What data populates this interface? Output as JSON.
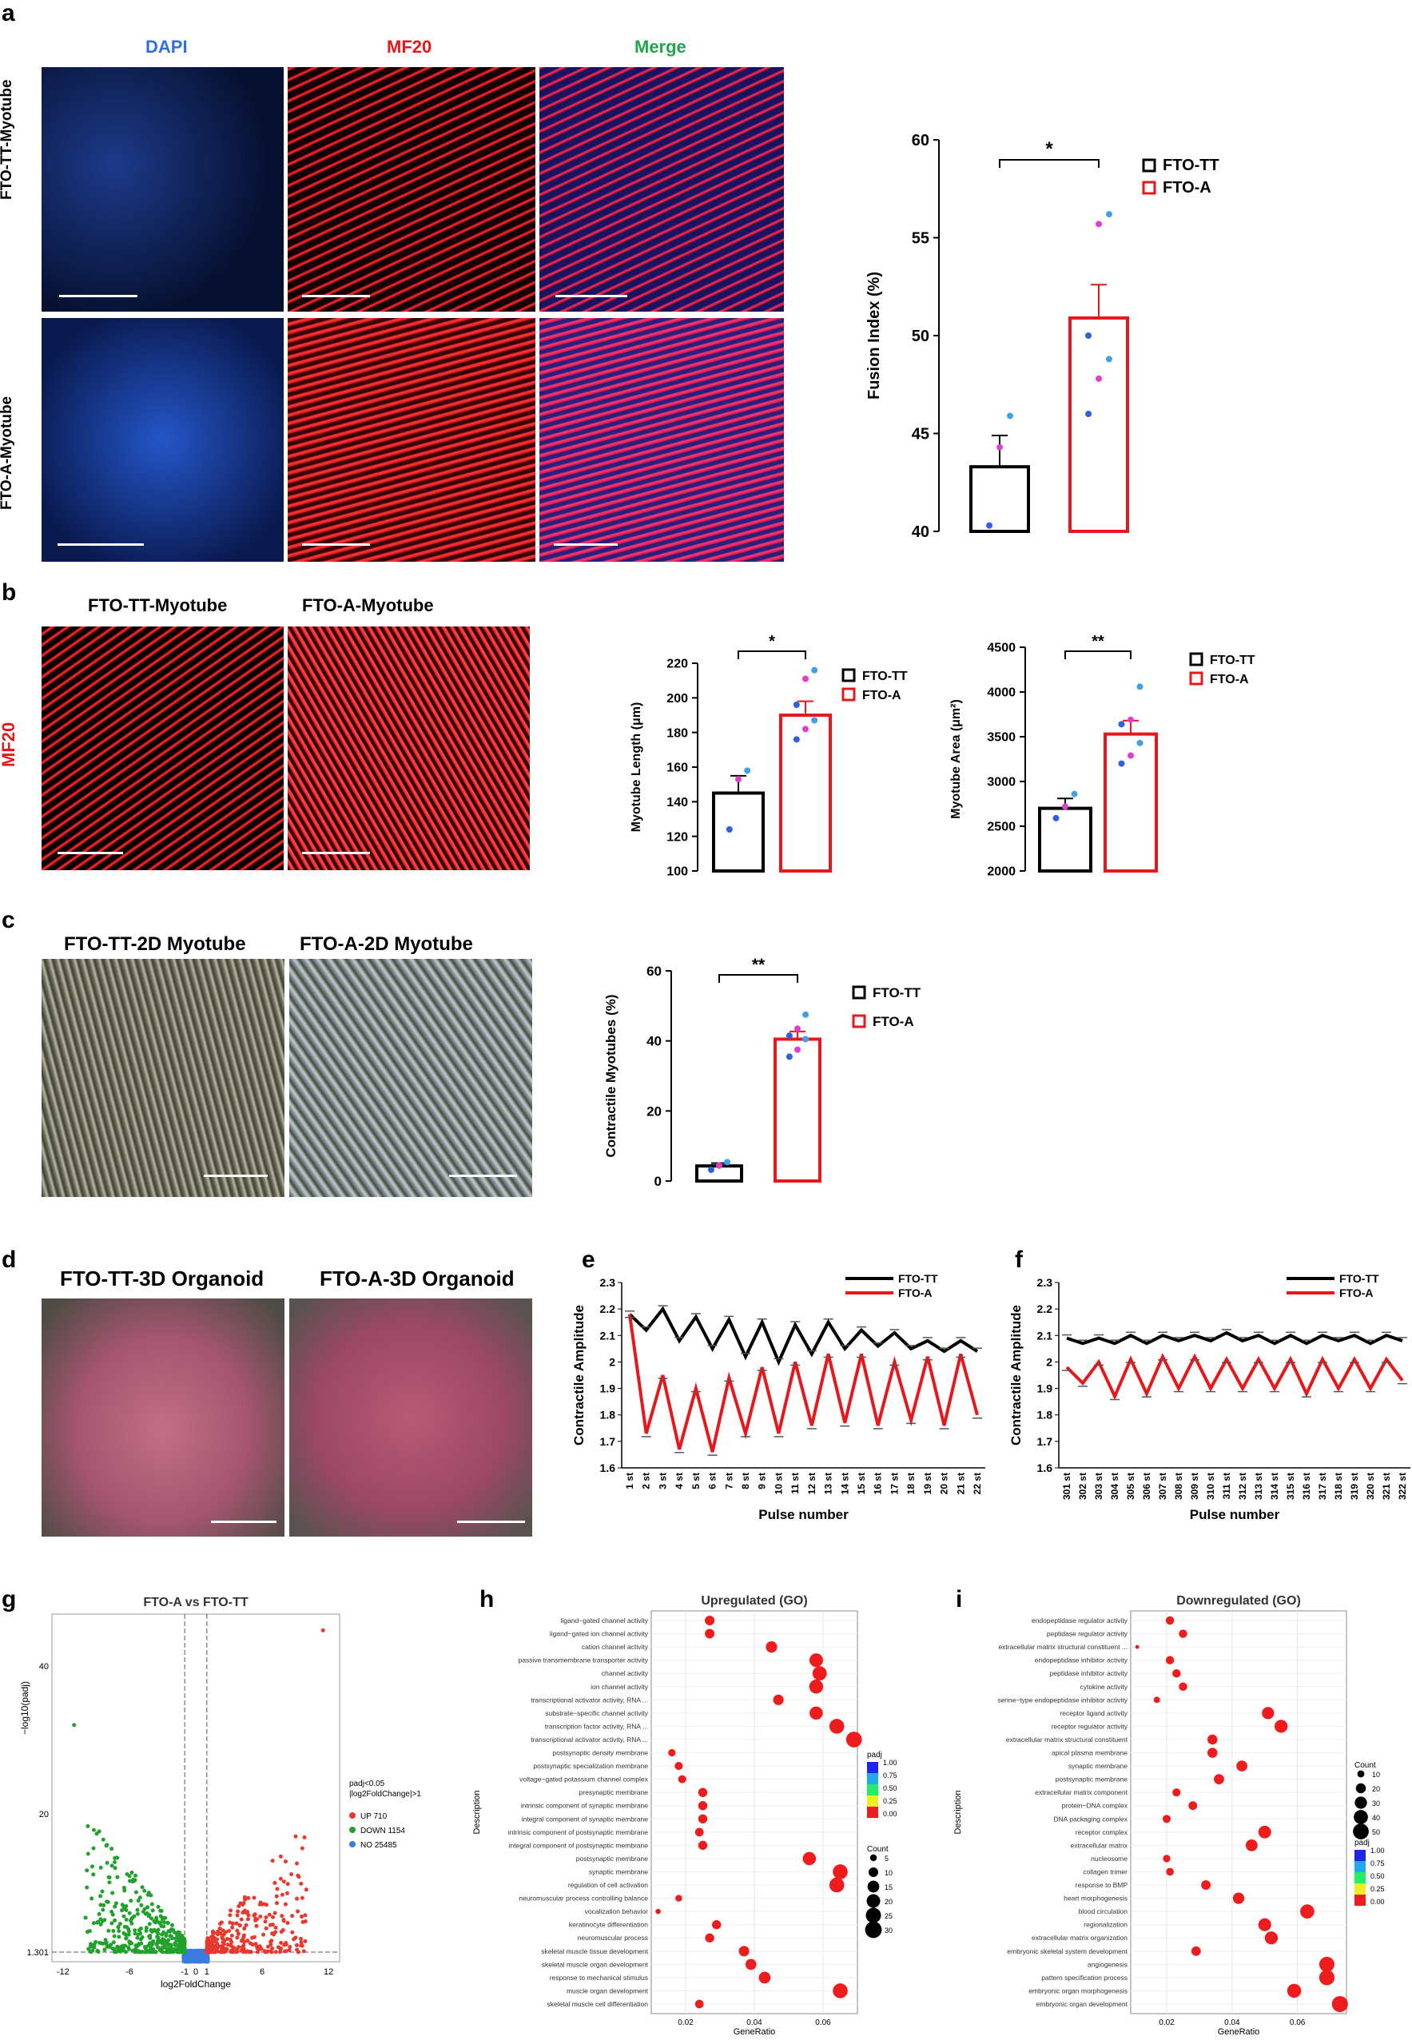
{
  "colors": {
    "tt": "#000000",
    "a": "#e8171b",
    "dapi": "#2f6fe0",
    "mf20": "#e8171b",
    "merge": "#22a54a",
    "up": "#e8392f",
    "down": "#22a12c",
    "no": "#3a7be0"
  },
  "panel_a": {
    "label": "a",
    "headers": {
      "dapi": "DAPI",
      "mf20": "MF20",
      "merge": "Merge"
    },
    "rows": [
      "FTO-TT-Myotube",
      "FTO-A-Myotube"
    ]
  },
  "panel_b": {
    "label": "b",
    "headers": {
      "tt": "FTO-TT-Myotube",
      "a": "FTO-A-Myotube"
    },
    "side": "MF20"
  },
  "panel_c": {
    "label": "c",
    "headers": {
      "tt": "FTO-TT-2D Myotube",
      "a": "FTO-A-2D Myotube"
    }
  },
  "panel_d": {
    "label": "d",
    "headers": {
      "tt": "FTO-TT-3D Organoid",
      "a": "FTO-A-3D Organoid"
    }
  },
  "chart_data": [
    {
      "id": "fusion",
      "type": "bar",
      "ylabel": "Fusion Index (%)",
      "ylim": [
        40,
        60
      ],
      "yticks": [
        40,
        45,
        50,
        55,
        60
      ],
      "categories": [
        "FTO-TT",
        "FTO-A"
      ],
      "values": [
        43.3,
        50.9
      ],
      "errors": [
        1.6,
        1.7
      ],
      "sig": "*",
      "points": [
        [
          40.3,
          44.3,
          45.9
        ],
        [
          46,
          47.8,
          48.8,
          50,
          55.7,
          56.2
        ]
      ],
      "legend": [
        "FTO-TT",
        "FTO-A"
      ]
    },
    {
      "id": "length",
      "type": "bar",
      "ylabel": "Myotube Length (μm)",
      "ylim": [
        100,
        220
      ],
      "yticks": [
        100,
        120,
        140,
        160,
        180,
        200,
        220
      ],
      "categories": [
        "FTO-TT",
        "FTO-A"
      ],
      "values": [
        145,
        190
      ],
      "errors": [
        10,
        8
      ],
      "sig": "*",
      "points": [
        [
          124,
          153,
          158
        ],
        [
          176,
          182,
          187,
          196,
          211,
          216
        ]
      ],
      "legend": [
        "FTO-TT",
        "FTO-A"
      ]
    },
    {
      "id": "area",
      "type": "bar",
      "ylabel": "Myotube Area (μm²)",
      "ylim": [
        2000,
        4500
      ],
      "yticks": [
        2000,
        2500,
        3000,
        3500,
        4000,
        4500
      ],
      "categories": [
        "FTO-TT",
        "FTO-A"
      ],
      "values": [
        2700,
        3530
      ],
      "errors": [
        110,
        150
      ],
      "sig": "**",
      "points": [
        [
          2590,
          2720,
          2860
        ],
        [
          3200,
          3290,
          3430,
          3640,
          3690,
          4060
        ]
      ],
      "legend": [
        "FTO-TT",
        "FTO-A"
      ]
    },
    {
      "id": "contractile",
      "type": "bar",
      "ylabel": "Contractile Myotubes (%)",
      "ylim": [
        0,
        60
      ],
      "yticks": [
        0,
        20,
        40,
        60
      ],
      "categories": [
        "FTO-TT",
        "FTO-A"
      ],
      "values": [
        4.3,
        40.5
      ],
      "errors": [
        0.8,
        2.2
      ],
      "sig": "**",
      "points": [
        [
          3.2,
          4.4,
          5.4
        ],
        [
          35.5,
          37.5,
          40.5,
          41.5,
          43.5,
          47.5
        ]
      ],
      "legend": [
        "FTO-TT",
        "FTO-A"
      ]
    },
    {
      "id": "amp1",
      "type": "line",
      "panel": "e",
      "ylabel": "Contractile Amplitude",
      "xlabel": "Pulse number",
      "ylim": [
        1.6,
        2.3
      ],
      "yticks": [
        "1.6",
        "1.7",
        "1.8",
        "1.9",
        "2",
        "2.1",
        "2.2",
        "2.3"
      ],
      "x": [
        "1 st",
        "2 st",
        "3 st",
        "4 st",
        "5 st",
        "6 st",
        "7 st",
        "8 st",
        "9 st",
        "10 st",
        "11 st",
        "12 st",
        "13 st",
        "14 st",
        "15 st",
        "16 st",
        "17 st",
        "18 st",
        "19 st",
        "20 st",
        "21 st",
        "22 st"
      ],
      "series": [
        {
          "name": "FTO-TT",
          "values": [
            2.18,
            2.12,
            2.2,
            2.08,
            2.17,
            2.05,
            2.16,
            2.02,
            2.15,
            2.0,
            2.14,
            2.03,
            2.15,
            2.05,
            2.12,
            2.06,
            2.11,
            2.05,
            2.08,
            2.04,
            2.08,
            2.04
          ]
        },
        {
          "name": "FTO-A",
          "values": [
            2.18,
            1.73,
            1.95,
            1.67,
            1.9,
            1.66,
            1.94,
            1.73,
            1.98,
            1.73,
            2.0,
            1.76,
            2.03,
            1.77,
            2.03,
            1.76,
            2.0,
            1.78,
            2.02,
            1.76,
            2.03,
            1.8
          ]
        }
      ]
    },
    {
      "id": "amp2",
      "type": "line",
      "panel": "f",
      "ylabel": "Contractile Amplitude",
      "xlabel": "Pulse number",
      "ylim": [
        1.6,
        2.3
      ],
      "yticks": [
        "1.6",
        "1.7",
        "1.8",
        "1.9",
        "2",
        "2.1",
        "2.2",
        "2.3"
      ],
      "x": [
        "301 st",
        "302 st",
        "303 st",
        "304 st",
        "305 st",
        "306 st",
        "307 st",
        "308 st",
        "309 st",
        "310 st",
        "311 st",
        "312 st",
        "313 st",
        "314 st",
        "315 st",
        "316 st",
        "317 st",
        "318 st",
        "319 st",
        "320 st",
        "321 st",
        "322 st"
      ],
      "series": [
        {
          "name": "FTO-TT",
          "values": [
            2.09,
            2.07,
            2.09,
            2.07,
            2.1,
            2.07,
            2.1,
            2.08,
            2.1,
            2.08,
            2.11,
            2.08,
            2.1,
            2.07,
            2.1,
            2.07,
            2.1,
            2.08,
            2.1,
            2.07,
            2.1,
            2.08
          ]
        },
        {
          "name": "FTO-A",
          "values": [
            1.98,
            1.92,
            2.0,
            1.87,
            2.01,
            1.88,
            2.02,
            1.9,
            2.02,
            1.9,
            2.01,
            1.9,
            2.01,
            1.9,
            2.01,
            1.88,
            2.01,
            1.9,
            2.01,
            1.9,
            2.01,
            1.93
          ]
        }
      ]
    },
    {
      "id": "volcano",
      "type": "scatter",
      "panel": "g",
      "title": "FTO-A vs FTO-TT",
      "xlabel": "log2FoldChange",
      "ylabel": "−log10(padj)",
      "xticks": [
        "-12",
        "-6",
        "-1",
        "0",
        "1",
        "6",
        "12"
      ],
      "yticks": [
        "1.301",
        "20",
        "40"
      ],
      "legend_title": "padj<0.05\n|log2FoldChange|>1",
      "legend": [
        {
          "name": "UP 710",
          "color": "#e8392f"
        },
        {
          "name": "DOWN 1154",
          "color": "#22a12c"
        },
        {
          "name": "NO 25485",
          "color": "#3a7be0"
        }
      ]
    },
    {
      "id": "go_up",
      "type": "scatter",
      "panel": "h",
      "title": "Upregulated (GO)",
      "xlabel": "GeneRatio",
      "ylabel": "Description",
      "xticks": [
        "0.02",
        "0.04",
        "0.06"
      ],
      "xlim": [
        0.01,
        0.07
      ],
      "size_legend_title": "Count",
      "size_legend": [
        "5",
        "10",
        "15",
        "20",
        "25",
        "30"
      ],
      "color_legend_title": "padj",
      "color_legend": [
        "1.00",
        "0.75",
        "0.50",
        "0.25",
        "0.00"
      ],
      "terms": [
        "ligand−gated channel activity",
        "ligand−gated ion channel activity",
        "cation channel activity",
        "passive transmembrane transporter activity",
        "channel activity",
        "ion channel activity",
        "transcriptional activator activity, RNA ...",
        "substrate−specific channel activity",
        "transcription factor activity, RNA ...",
        "transcriptional activator activity, RNA ...",
        "postsynaptic density membrane",
        "postsynaptic specialization membrane",
        "voltage−gated potassium channel complex",
        "presynaptic membrane",
        "intrinsic component of synaptic membrane",
        "integral component of synaptic membrane",
        "intrinsic component of postsynaptic membrane",
        "integral component of postsynaptic membrane",
        "postsynaptic membrane",
        "synaptic membrane",
        "regulation of cell activation",
        "neuromuscular process controlling balance",
        "vocalization behavior",
        "keratinocyte differentiation",
        "neuromuscular process",
        "skeletal muscle tissue development",
        "skeletal muscle organ development",
        "response to mechanical stimulus",
        "muscle organ development",
        "skeletal muscle cell differentiation"
      ],
      "ratio": [
        0.027,
        0.027,
        0.045,
        0.058,
        0.059,
        0.058,
        0.047,
        0.058,
        0.064,
        0.069,
        0.016,
        0.018,
        0.019,
        0.025,
        0.025,
        0.025,
        0.024,
        0.025,
        0.056,
        0.065,
        0.064,
        0.018,
        0.012,
        0.029,
        0.027,
        0.037,
        0.039,
        0.043,
        0.065,
        0.024
      ],
      "count": [
        10,
        10,
        14,
        20,
        22,
        21,
        12,
        19,
        24,
        27,
        6,
        7,
        7,
        9,
        9,
        9,
        8,
        9,
        19,
        24,
        24,
        5,
        3,
        9,
        9,
        12,
        13,
        15,
        24,
        8
      ]
    },
    {
      "id": "go_down",
      "type": "scatter",
      "panel": "i",
      "title": "Downregulated (GO)",
      "xlabel": "GeneRatio",
      "ylabel": "Description",
      "xticks": [
        "0.02",
        "0.04",
        "0.06"
      ],
      "xlim": [
        0.009,
        0.075
      ],
      "size_legend_title": "Count",
      "size_legend": [
        "10",
        "20",
        "30",
        "40",
        "50"
      ],
      "color_legend_title": "padj",
      "color_legend": [
        "1.00",
        "0.75",
        "0.50",
        "0.25",
        "0.00"
      ],
      "terms": [
        "endopeptidase regulator activity",
        "peptidase regulator activity",
        "extracellular matrix structural constituent ...",
        "endopeptidase inhibitor activity",
        "peptidase inhibitor activity",
        "cytokine activity",
        "serine−type endopeptidase inhibitor activity",
        "receptor ligand activity",
        "receptor regulator activity",
        "extracellular matrix structural constituent",
        "apical plasma membrane",
        "synaptic membrane",
        "postsynaptic membrane",
        "extracellular matrix component",
        "protein−DNA complex",
        "DNA packaging complex",
        "receptor complex",
        "extracellular matrix",
        "nucleosome",
        "collagen trimer",
        "response to BMP",
        "heart morphogenesis",
        "blood circulation",
        "regionalization",
        "extracellular matrix organization",
        "embryonic skeletal system development",
        "angiogenesis",
        "pattern specification process",
        "embryonic organ morphogenesis",
        "embryonic organ development"
      ],
      "ratio": [
        0.021,
        0.025,
        0.011,
        0.021,
        0.023,
        0.025,
        0.017,
        0.051,
        0.055,
        0.034,
        0.034,
        0.043,
        0.036,
        0.023,
        0.028,
        0.02,
        0.05,
        0.046,
        0.02,
        0.021,
        0.032,
        0.042,
        0.063,
        0.05,
        0.052,
        0.029,
        0.069,
        0.069,
        0.059,
        0.073
      ],
      "count": [
        14,
        14,
        3,
        14,
        14,
        14,
        8,
        30,
        34,
        20,
        20,
        24,
        21,
        13,
        15,
        13,
        32,
        28,
        11,
        12,
        18,
        26,
        40,
        33,
        34,
        18,
        46,
        47,
        39,
        51
      ]
    }
  ]
}
